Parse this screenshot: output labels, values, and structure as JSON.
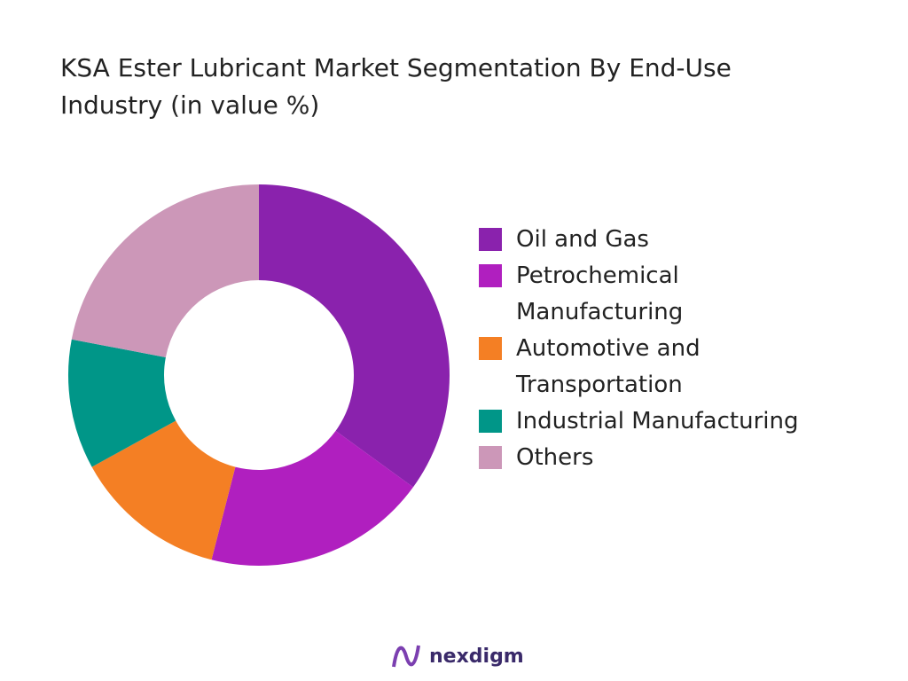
{
  "chart_data": {
    "type": "donut",
    "title": "KSA Ester Lubricant Market Segmentation By End-Use Industry (in value %)",
    "categories": [
      "Oil and Gas",
      "Petrochemical Manufacturing",
      "Automotive and Transportation",
      "Industrial Manufacturing",
      "Others"
    ],
    "values": [
      35,
      19,
      13,
      11,
      22
    ],
    "colors": [
      "#8a22ad",
      "#b01fbf",
      "#f47f24",
      "#009688",
      "#cc97b8"
    ],
    "legend": "right"
  },
  "brand": "nexdigm"
}
